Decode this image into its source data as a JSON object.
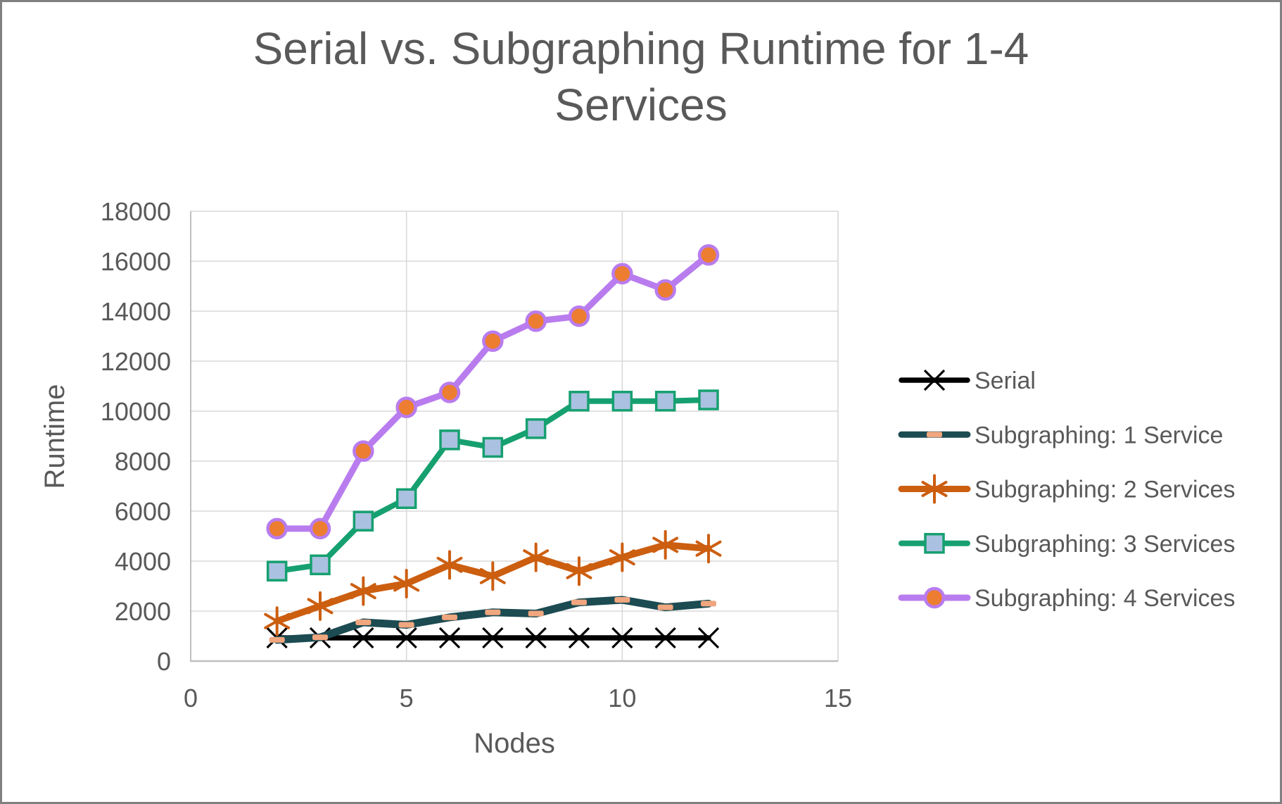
{
  "colors": {
    "background": "#FFFFFF",
    "frame_border": "#808080",
    "text": "#595959",
    "gridline": "#D9D9D9",
    "axis": "#BFBFBF"
  },
  "chart_data": {
    "type": "line",
    "title": "Serial vs. Subgraphing Runtime for 1-4 Services",
    "xlabel": "Nodes",
    "ylabel": "Runtime",
    "xlim": [
      0,
      15
    ],
    "ylim": [
      0,
      18000
    ],
    "x_ticks": [
      0,
      5,
      10,
      15
    ],
    "y_ticks": [
      0,
      2000,
      4000,
      6000,
      8000,
      10000,
      12000,
      14000,
      16000,
      18000
    ],
    "grid": true,
    "legend_position": "right",
    "x": [
      2,
      3,
      4,
      5,
      6,
      7,
      8,
      9,
      10,
      11,
      12
    ],
    "series": [
      {
        "name": "Serial",
        "color": "#000000",
        "line_width": 7.5,
        "marker": "x",
        "marker_color": "#000000",
        "values": [
          930,
          930,
          930,
          930,
          930,
          930,
          930,
          930,
          930,
          930,
          930
        ]
      },
      {
        "name": "Subgraphing: 1 Service",
        "color": "#1C4B52",
        "line_width": 11,
        "marker": "dash",
        "marker_color": "#F0A67E",
        "values": [
          850,
          950,
          1550,
          1450,
          1750,
          1950,
          1900,
          2350,
          2450,
          2150,
          2300
        ]
      },
      {
        "name": "Subgraphing: 2 Services",
        "color": "#CC5E10",
        "line_width": 9.5,
        "marker": "asterisk",
        "marker_color": "#CC5E10",
        "values": [
          1600,
          2200,
          2800,
          3100,
          3850,
          3400,
          4150,
          3600,
          4150,
          4650,
          4500
        ]
      },
      {
        "name": "Subgraphing: 3 Services",
        "color": "#16A070",
        "line_width": 8,
        "marker": "square",
        "marker_color": "#ABC1E1",
        "marker_border": "#16A070",
        "values": [
          3600,
          3850,
          5600,
          6500,
          8850,
          8550,
          9300,
          10400,
          10400,
          10400,
          10450
        ]
      },
      {
        "name": "Subgraphing: 4 Services",
        "color": "#B97CEE",
        "line_width": 9,
        "marker": "circle",
        "marker_color": "#ED7D31",
        "marker_border": "#B97CEE",
        "values": [
          5300,
          5300,
          8400,
          10150,
          10750,
          12800,
          13600,
          13800,
          15500,
          14850,
          16250
        ]
      }
    ]
  }
}
